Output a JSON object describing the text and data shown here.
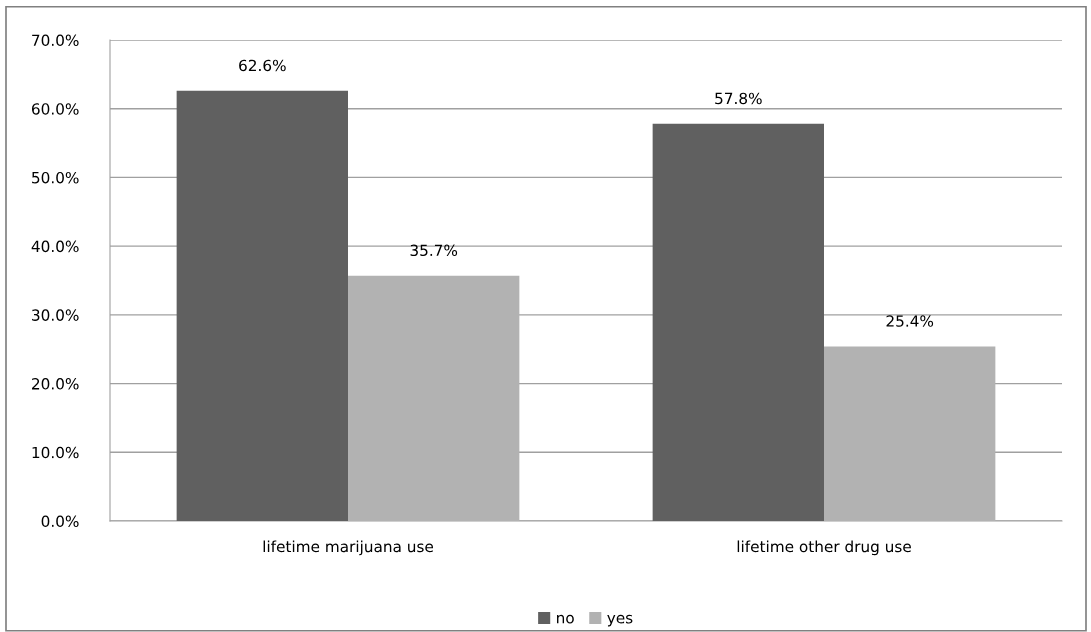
{
  "chart_data": {
    "type": "bar",
    "categories": [
      "lifetime marijuana use",
      "lifetime other drug use"
    ],
    "series": [
      {
        "name": "no",
        "color": "#606060",
        "values": [
          62.6,
          57.8
        ],
        "value_labels": [
          "62.6%",
          "57.8%"
        ]
      },
      {
        "name": "yes",
        "color": "#b2b2b2",
        "values": [
          35.7,
          25.4
        ],
        "value_labels": [
          "35.7%",
          "25.4%"
        ]
      }
    ],
    "ylim": [
      0,
      70
    ],
    "yticks": [
      {
        "value": 0,
        "label": "0.0%"
      },
      {
        "value": 10,
        "label": "10.0%"
      },
      {
        "value": 20,
        "label": "20.0%"
      },
      {
        "value": 30,
        "label": "30.0%"
      },
      {
        "value": 40,
        "label": "40.0%"
      },
      {
        "value": 50,
        "label": "50.0%"
      },
      {
        "value": 60,
        "label": "60.0%"
      },
      {
        "value": 70,
        "label": "70.0%"
      }
    ],
    "grid": "y",
    "legend": "bottom"
  }
}
